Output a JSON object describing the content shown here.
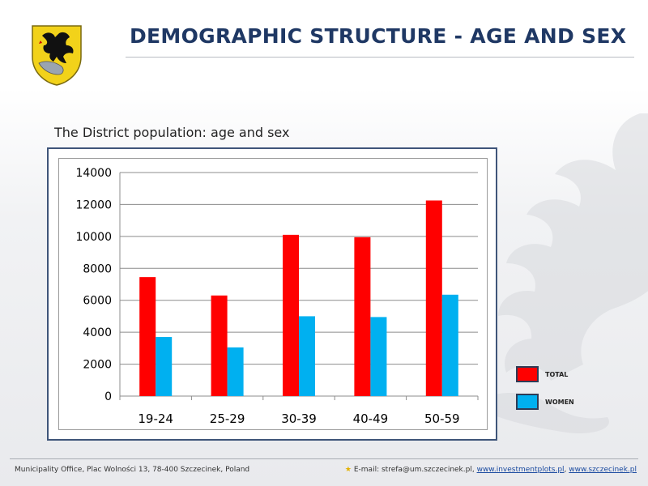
{
  "header": {
    "title": "DEMOGRAPHIC STRUCTURE - AGE AND SEX"
  },
  "subtitle": "The District population: age and sex",
  "chart_data": {
    "type": "bar",
    "categories": [
      "19-24",
      "25-29",
      "30-39",
      "40-49",
      "50-59"
    ],
    "series": [
      {
        "name": "TOTAL",
        "values": [
          7450,
          6300,
          10100,
          9950,
          12250
        ],
        "color": "#ff0000"
      },
      {
        "name": "WOMEN",
        "values": [
          3700,
          3050,
          5000,
          4950,
          6350
        ],
        "color": "#00b0f0"
      }
    ],
    "ylim": [
      0,
      14000
    ],
    "yticks": [
      "0",
      "2000",
      "4000",
      "6000",
      "8000",
      "10000",
      "12000",
      "14000"
    ],
    "grid": true,
    "legend_position": "right-bottom"
  },
  "footer": {
    "address": "Municipality Office, Plac Wolności 13, 78-400 Szczecinek, Poland",
    "email_label": "E-mail: strefa@um.szczecinek.pl,",
    "link1": "www.investmentplots.pl",
    "separator": ",",
    "link2": "www.szczecinek.pl"
  },
  "colors": {
    "title": "#1f3864",
    "frame": "#3f5579",
    "total": "#ff0000",
    "women": "#00b0f0"
  },
  "icons": [
    "griffin-crest-icon",
    "griffin-watermark-icon",
    "star-icon"
  ]
}
